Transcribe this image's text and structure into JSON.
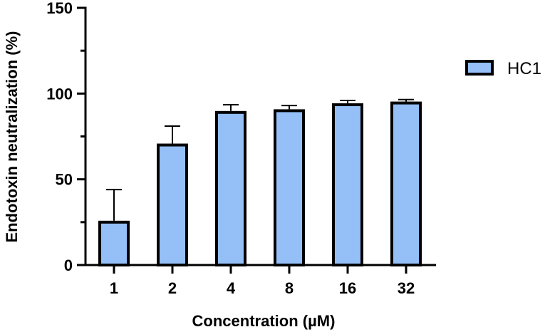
{
  "chart_data": {
    "type": "bar",
    "title": "",
    "xlabel": "Concentration (µM)",
    "ylabel": "Endotoxin neutralization (%)",
    "ylim": [
      0,
      150
    ],
    "yticks": [
      0,
      50,
      100,
      150
    ],
    "grid": false,
    "legend_position": "right",
    "categories": [
      "1",
      "2",
      "4",
      "8",
      "16",
      "32"
    ],
    "series": [
      {
        "name": "HC1",
        "color": "#94bff7",
        "values": [
          25,
          70,
          89,
          90,
          93.5,
          94.5
        ],
        "error_upper": [
          19,
          11,
          4.5,
          3,
          2.5,
          2
        ]
      }
    ]
  },
  "colors": {
    "bar_fill": "#94bff7",
    "stroke": "#000000"
  }
}
